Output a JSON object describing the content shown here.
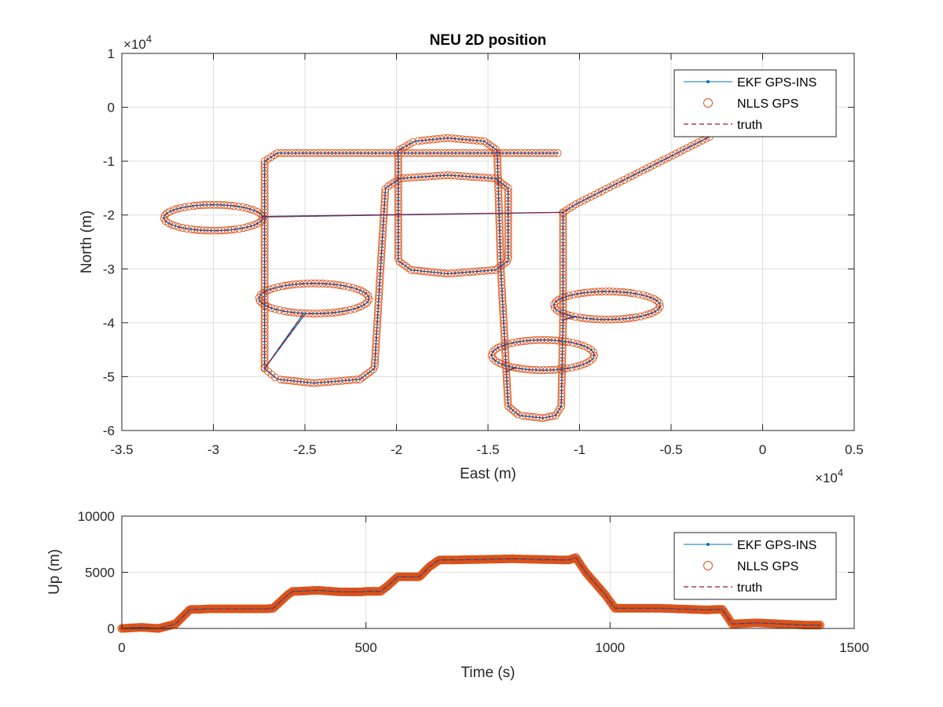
{
  "figure": {
    "background": "#ffffff",
    "colors": {
      "ekf": "#0072BD",
      "nlls": "#D95319",
      "truth": "#A2142F"
    }
  },
  "chart_data": [
    {
      "type": "line",
      "title": "NEU 2D position",
      "xlabel": "East (m)",
      "ylabel": "North (m)",
      "xlim": [
        -35000,
        5000
      ],
      "ylim": [
        -60000,
        10000
      ],
      "x_ticks": [
        -35000,
        -30000,
        -25000,
        -20000,
        -15000,
        -10000,
        -5000,
        0,
        5000
      ],
      "x_tick_labels": [
        "-3.5",
        "-3",
        "-2.5",
        "-2",
        "-1.5",
        "-1",
        "-0.5",
        "0",
        "0.5"
      ],
      "y_ticks": [
        -60000,
        -50000,
        -40000,
        -30000,
        -20000,
        -10000,
        0,
        10000
      ],
      "y_tick_labels": [
        "-6",
        "-5",
        "-4",
        "-3",
        "-2",
        "-1",
        "0",
        "1"
      ],
      "x_exponent": "10",
      "x_exponent_power": "4",
      "y_exponent": "10",
      "y_exponent_power": "4",
      "grid": true,
      "legend_position": "top-right",
      "legend": [
        "EKF GPS-INS",
        "NLLS GPS",
        "truth"
      ],
      "series": [
        {
          "name": "truth",
          "path": [
            {
              "op": "line",
              "to": [
                -11200,
                -8500
              ]
            },
            {
              "op": "line",
              "to": [
                -26500,
                -8500
              ]
            },
            {
              "op": "line",
              "to": [
                -27200,
                -10000
              ]
            },
            {
              "op": "line",
              "to": [
                -27200,
                -48500
              ]
            },
            {
              "op": "ellipse",
              "center": [
                -24500,
                -35500
              ],
              "rx": 3000,
              "ry": 2800
            },
            {
              "op": "line",
              "to": [
                -27200,
                -48500
              ]
            },
            {
              "op": "line",
              "to": [
                -26500,
                -50500
              ]
            },
            {
              "op": "line",
              "to": [
                -24500,
                -51200
              ]
            },
            {
              "op": "line",
              "to": [
                -22000,
                -50500
              ]
            },
            {
              "op": "line",
              "to": [
                -21200,
                -48500
              ]
            },
            {
              "op": "line",
              "to": [
                -20600,
                -15000
              ]
            },
            {
              "op": "line",
              "to": [
                -19800,
                -13200
              ]
            },
            {
              "op": "line",
              "to": [
                -17200,
                -12600
              ]
            },
            {
              "op": "line",
              "to": [
                -14600,
                -13200
              ]
            },
            {
              "op": "line",
              "to": [
                -13900,
                -15000
              ]
            },
            {
              "op": "line",
              "to": [
                -13900,
                -28500
              ]
            },
            {
              "op": "line",
              "to": [
                -14600,
                -30200
              ]
            },
            {
              "op": "line",
              "to": [
                -17200,
                -30900
              ]
            },
            {
              "op": "line",
              "to": [
                -19200,
                -30200
              ]
            },
            {
              "op": "line",
              "to": [
                -19900,
                -28500
              ]
            },
            {
              "op": "line",
              "to": [
                -19900,
                -8000
              ]
            },
            {
              "op": "line",
              "to": [
                -19000,
                -6300
              ]
            },
            {
              "op": "line",
              "to": [
                -17200,
                -5700
              ]
            },
            {
              "op": "line",
              "to": [
                -15200,
                -6300
              ]
            },
            {
              "op": "line",
              "to": [
                -14500,
                -8000
              ]
            },
            {
              "op": "line",
              "to": [
                -14300,
                -30000
              ]
            },
            {
              "op": "line",
              "to": [
                -14000,
                -49000
              ]
            },
            {
              "op": "ellipse",
              "center": [
                -12000,
                -46000
              ],
              "rx": 2800,
              "ry": 2800
            },
            {
              "op": "line",
              "to": [
                -14000,
                -49000
              ]
            },
            {
              "op": "line",
              "to": [
                -13900,
                -55500
              ]
            },
            {
              "op": "line",
              "to": [
                -13300,
                -57200
              ]
            },
            {
              "op": "line",
              "to": [
                -12000,
                -57700
              ]
            },
            {
              "op": "line",
              "to": [
                -11300,
                -57200
              ]
            },
            {
              "op": "line",
              "to": [
                -11000,
                -55500
              ]
            },
            {
              "op": "line",
              "to": [
                -10900,
                -39500
              ]
            },
            {
              "op": "ellipse",
              "center": [
                -8500,
                -36800
              ],
              "rx": 2900,
              "ry": 2600
            },
            {
              "op": "line",
              "to": [
                -10900,
                -39500
              ]
            },
            {
              "op": "line",
              "to": [
                -10900,
                -19500
              ]
            },
            {
              "op": "ellipse",
              "center": [
                -30000,
                -20500
              ],
              "rx": 2700,
              "ry": 2400
            },
            {
              "op": "line",
              "to": [
                -10900,
                -19500
              ]
            },
            {
              "op": "line",
              "to": [
                -10200,
                -18000
              ]
            },
            {
              "op": "line",
              "to": [
                -2800,
                -5300
              ]
            }
          ]
        }
      ]
    },
    {
      "type": "line",
      "title": "",
      "xlabel": "Time (s)",
      "ylabel": "Up (m)",
      "xlim": [
        0,
        1500
      ],
      "ylim": [
        0,
        10000
      ],
      "x_ticks": [
        0,
        500,
        1000,
        1500
      ],
      "x_tick_labels": [
        "0",
        "500",
        "1000",
        "1500"
      ],
      "y_ticks": [
        0,
        5000,
        10000
      ],
      "y_tick_labels": [
        "0",
        "5000",
        "10000"
      ],
      "grid": true,
      "legend_position": "top-right",
      "legend": [
        "EKF GPS-INS",
        "NLLS GPS",
        "truth"
      ],
      "series": [
        {
          "name": "truth",
          "x": [
            0,
            40,
            75,
            110,
            140,
            160,
            180,
            300,
            310,
            320,
            340,
            350,
            360,
            400,
            450,
            490,
            500,
            510,
            520,
            530,
            545,
            565,
            590,
            610,
            630,
            650,
            680,
            800,
            900,
            915,
            930,
            950,
            970,
            990,
            1010,
            1020,
            1100,
            1200,
            1220,
            1230,
            1250,
            1300,
            1350,
            1400,
            1430
          ],
          "values": [
            0,
            100,
            0,
            400,
            1700,
            1700,
            1750,
            1750,
            1800,
            2200,
            3000,
            3300,
            3300,
            3400,
            3250,
            3250,
            3300,
            3300,
            3300,
            3300,
            3800,
            4600,
            4600,
            4600,
            5500,
            6100,
            6100,
            6200,
            6100,
            6100,
            6300,
            5000,
            4000,
            3000,
            1800,
            1800,
            1800,
            1650,
            1700,
            1700,
            400,
            500,
            400,
            300,
            300
          ]
        }
      ]
    }
  ]
}
